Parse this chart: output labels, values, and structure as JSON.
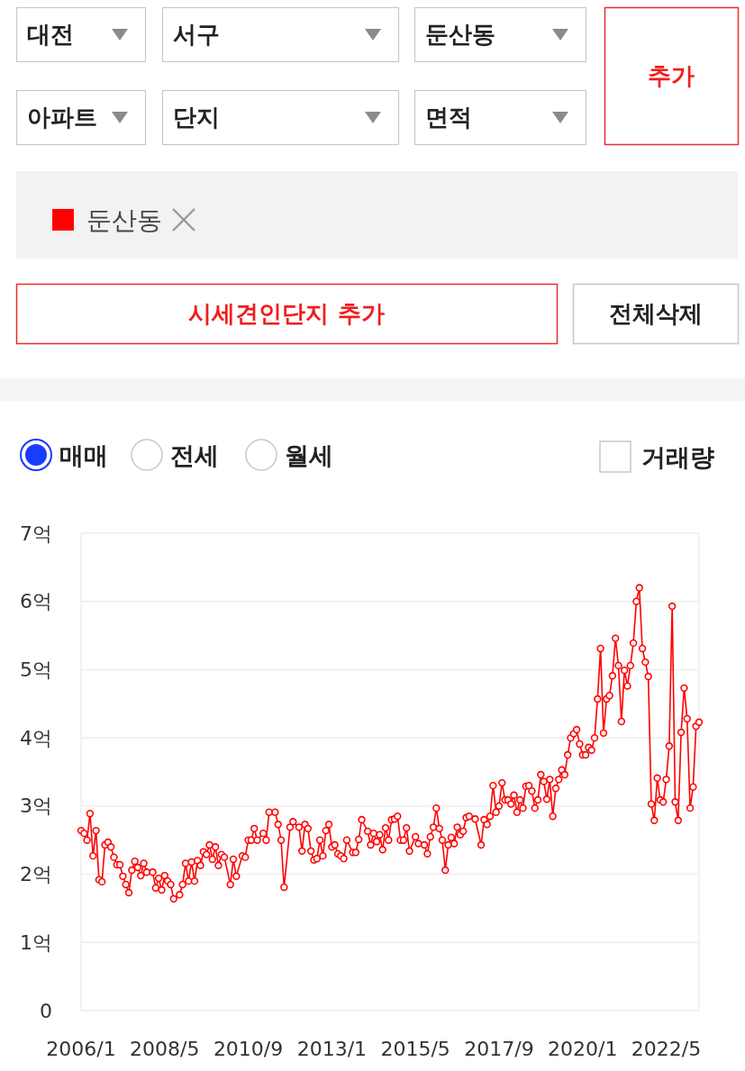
{
  "chart_data": {
    "type": "line",
    "legend": "top",
    "marker": "circle",
    "grid": "y",
    "xlim": [
      "2006-01",
      "2023-04"
    ],
    "xticks": [
      {
        "value": "2006-01",
        "label": "2006/1"
      },
      {
        "value": "2008-05",
        "label": "2008/5"
      },
      {
        "value": "2010-09",
        "label": "2010/9"
      },
      {
        "value": "2013-01",
        "label": "2013/1"
      },
      {
        "value": "2015-05",
        "label": "2015/5"
      },
      {
        "value": "2017-09",
        "label": "2017/9"
      },
      {
        "value": "2020-01",
        "label": "2020/1"
      },
      {
        "value": "2022-05",
        "label": "2022/5"
      }
    ],
    "ylim": [
      0,
      7
    ],
    "yticks": [
      0,
      {
        "value": 1,
        "label": "1억"
      },
      {
        "value": 2,
        "label": "2억"
      },
      {
        "value": 3,
        "label": "3억"
      },
      {
        "value": 4,
        "label": "4억"
      },
      {
        "value": 5,
        "label": "5억"
      },
      {
        "value": 6,
        "label": "6억"
      },
      {
        "value": 7,
        "label": "7억"
      }
    ],
    "annotations": [
      "대전",
      "서구",
      "둔산동",
      "아파트",
      "단지",
      "면적",
      "추가",
      "시세견인단지 추가",
      "전체삭제",
      "매매",
      "전세",
      "월세",
      "거래량"
    ],
    "series": [
      {
        "name": "둔산동",
        "color": "#ff0000",
        "x": [
          "2006-01",
          "2006-02",
          "2006-03",
          "2006-04",
          "2006-05",
          "2006-06",
          "2006-07",
          "2006-08",
          "2006-09",
          "2006-10",
          "2006-11",
          "2006-12",
          "2007-01",
          "2007-02",
          "2007-03",
          "2007-04",
          "2007-05",
          "2007-06",
          "2007-07",
          "2007-08",
          "2007-09",
          "2007-10",
          "2007-11",
          "2008-01",
          "2008-02",
          "2008-03",
          "2008-04",
          "2008-05",
          "2008-06",
          "2008-07",
          "2008-08",
          "2008-10",
          "2008-11",
          "2008-12",
          "2009-01",
          "2009-02",
          "2009-03",
          "2009-04",
          "2009-05",
          "2009-06",
          "2009-07",
          "2009-08",
          "2009-09",
          "2009-10",
          "2009-11",
          "2009-12",
          "2010-01",
          "2010-03",
          "2010-04",
          "2010-05",
          "2010-07",
          "2010-08",
          "2010-09",
          "2010-10",
          "2010-11",
          "2010-12",
          "2011-02",
          "2011-03",
          "2011-04",
          "2011-06",
          "2011-07",
          "2011-08",
          "2011-09",
          "2011-11",
          "2011-12",
          "2012-02",
          "2012-03",
          "2012-04",
          "2012-05",
          "2012-06",
          "2012-07",
          "2012-08",
          "2012-09",
          "2012-10",
          "2012-11",
          "2012-12",
          "2013-01",
          "2013-02",
          "2013-03",
          "2013-04",
          "2013-05",
          "2013-06",
          "2013-08",
          "2013-09",
          "2013-10",
          "2013-11",
          "2014-01",
          "2014-02",
          "2014-03",
          "2014-04",
          "2014-05",
          "2014-06",
          "2014-07",
          "2014-08",
          "2014-09",
          "2014-10",
          "2014-11",
          "2014-12",
          "2015-01",
          "2015-02",
          "2015-03",
          "2015-05",
          "2015-06",
          "2015-08",
          "2015-09",
          "2015-10",
          "2015-11",
          "2015-12",
          "2016-01",
          "2016-02",
          "2016-03",
          "2016-04",
          "2016-05",
          "2016-06",
          "2016-07",
          "2016-08",
          "2016-09",
          "2016-10",
          "2016-11",
          "2017-01",
          "2017-03",
          "2017-04",
          "2017-05",
          "2017-06",
          "2017-07",
          "2017-08",
          "2017-09",
          "2017-10",
          "2017-11",
          "2017-12",
          "2018-01",
          "2018-02",
          "2018-03",
          "2018-04",
          "2018-05",
          "2018-06",
          "2018-07",
          "2018-08",
          "2018-09",
          "2018-10",
          "2018-11",
          "2018-12",
          "2019-01",
          "2019-02",
          "2019-03",
          "2019-04",
          "2019-05",
          "2019-06",
          "2019-07",
          "2019-08",
          "2019-09",
          "2019-10",
          "2019-11",
          "2019-12",
          "2020-01",
          "2020-02",
          "2020-03",
          "2020-04",
          "2020-05",
          "2020-06",
          "2020-07",
          "2020-08",
          "2020-09",
          "2020-10",
          "2020-11",
          "2020-12",
          "2021-01",
          "2021-02",
          "2021-03",
          "2021-04",
          "2021-05",
          "2021-06",
          "2021-07",
          "2021-08",
          "2021-09",
          "2021-10",
          "2021-11",
          "2021-12",
          "2022-01",
          "2022-02",
          "2022-03",
          "2022-04",
          "2022-05",
          "2022-06",
          "2022-07",
          "2022-08",
          "2022-09",
          "2022-10",
          "2022-11",
          "2022-12",
          "2023-01",
          "2023-02",
          "2023-03",
          "2023-04"
        ],
        "values": [
          2.64,
          2.6,
          2.5,
          2.89,
          2.27,
          2.64,
          1.92,
          1.89,
          2.43,
          2.47,
          2.4,
          2.25,
          2.14,
          2.14,
          1.97,
          1.85,
          1.73,
          2.06,
          2.19,
          2.1,
          1.98,
          2.16,
          2.03,
          2.03,
          1.8,
          1.94,
          1.77,
          1.98,
          1.9,
          1.85,
          1.64,
          1.7,
          1.85,
          2.16,
          1.9,
          2.18,
          1.9,
          2.2,
          2.13,
          2.33,
          2.29,
          2.43,
          2.22,
          2.4,
          2.13,
          2.29,
          2.25,
          1.85,
          2.22,
          1.97,
          2.27,
          2.25,
          2.5,
          2.5,
          2.67,
          2.5,
          2.6,
          2.5,
          2.91,
          2.91,
          2.73,
          2.5,
          1.81,
          2.69,
          2.77,
          2.69,
          2.34,
          2.73,
          2.67,
          2.34,
          2.21,
          2.23,
          2.5,
          2.27,
          2.64,
          2.73,
          2.4,
          2.43,
          2.3,
          2.27,
          2.23,
          2.5,
          2.32,
          2.32,
          2.51,
          2.8,
          2.63,
          2.43,
          2.6,
          2.48,
          2.58,
          2.36,
          2.68,
          2.5,
          2.8,
          2.81,
          2.85,
          2.5,
          2.5,
          2.68,
          2.34,
          2.55,
          2.45,
          2.43,
          2.3,
          2.55,
          2.69,
          2.97,
          2.67,
          2.5,
          2.06,
          2.43,
          2.54,
          2.45,
          2.69,
          2.58,
          2.63,
          2.83,
          2.85,
          2.81,
          2.43,
          2.8,
          2.73,
          2.85,
          3.3,
          2.91,
          3.0,
          3.34,
          3.09,
          3.09,
          3.03,
          3.16,
          2.91,
          3.09,
          2.97,
          3.29,
          3.3,
          3.22,
          2.97,
          3.09,
          3.46,
          3.36,
          3.1,
          3.39,
          2.85,
          3.26,
          3.39,
          3.53,
          3.46,
          3.75,
          4.0,
          4.06,
          4.12,
          3.91,
          3.75,
          3.75,
          3.86,
          3.82,
          4.0,
          4.57,
          5.31,
          4.07,
          4.57,
          4.62,
          4.91,
          5.46,
          5.06,
          4.24,
          4.99,
          4.76,
          5.06,
          5.39,
          6.0,
          6.2,
          5.31,
          5.11,
          4.9,
          3.03,
          2.79,
          3.41,
          3.09,
          3.06,
          3.39,
          3.88,
          5.93,
          3.06,
          2.79,
          4.08,
          4.73,
          4.28,
          2.97,
          3.28,
          4.17,
          4.23
        ]
      }
    ]
  }
}
